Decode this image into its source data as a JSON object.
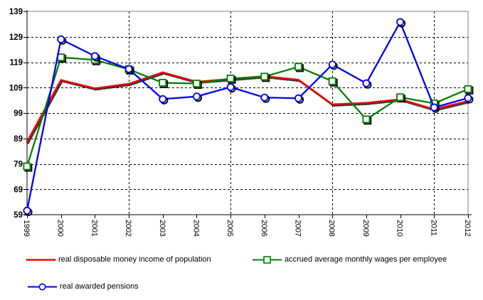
{
  "page": {
    "background": "#ffffff"
  },
  "chart_data": {
    "type": "line",
    "title": "",
    "xlabel": "",
    "ylabel": "",
    "x": [
      1999,
      2000,
      2001,
      2002,
      2003,
      2004,
      2005,
      2006,
      2007,
      2008,
      2009,
      2010,
      2011,
      2012
    ],
    "x_labels": [
      "1999",
      "2000",
      "2001",
      "2002",
      "2003",
      "2004",
      "2005",
      "2006",
      "2007",
      "2008",
      "2009",
      "2010",
      "2011",
      "2012"
    ],
    "ylim": [
      59,
      139
    ],
    "yticks": [
      59,
      69,
      79,
      89,
      99,
      109,
      119,
      129,
      139
    ],
    "grid": {
      "horizontal": true,
      "vertical_at_years": [
        2002,
        2005,
        2008,
        2011
      ],
      "style": "dashed"
    },
    "axis_color": "#000000",
    "plot_border_color": "#808080",
    "grid_color": "#000000",
    "marker_shadow_color": "#000000",
    "legend_position": "bottom-left",
    "series": [
      {
        "name": "real disposable money income of population",
        "color": "#f00000",
        "line_style": "dotted",
        "marker": "none",
        "values": [
          87.7,
          112.0,
          108.7,
          110.5,
          115.0,
          111.3,
          112.4,
          113.5,
          112.1,
          102.4,
          103.0,
          104.4,
          100.5,
          103.7
        ]
      },
      {
        "name": "accrued average monthly wages per employee",
        "color": "#008000",
        "line_style": "solid",
        "marker": "square",
        "values": [
          78.0,
          120.9,
          119.9,
          116.2,
          110.9,
          110.6,
          112.6,
          113.3,
          117.2,
          111.5,
          96.5,
          105.2,
          102.8,
          108.4
        ]
      },
      {
        "name": "real awarded pensions",
        "color": "#0000ee",
        "line_style": "solid",
        "marker": "circle",
        "values": [
          60.6,
          128.0,
          121.4,
          116.3,
          104.5,
          105.5,
          109.2,
          105.1,
          104.8,
          118.1,
          110.7,
          134.8,
          101.2,
          104.9
        ]
      }
    ]
  }
}
